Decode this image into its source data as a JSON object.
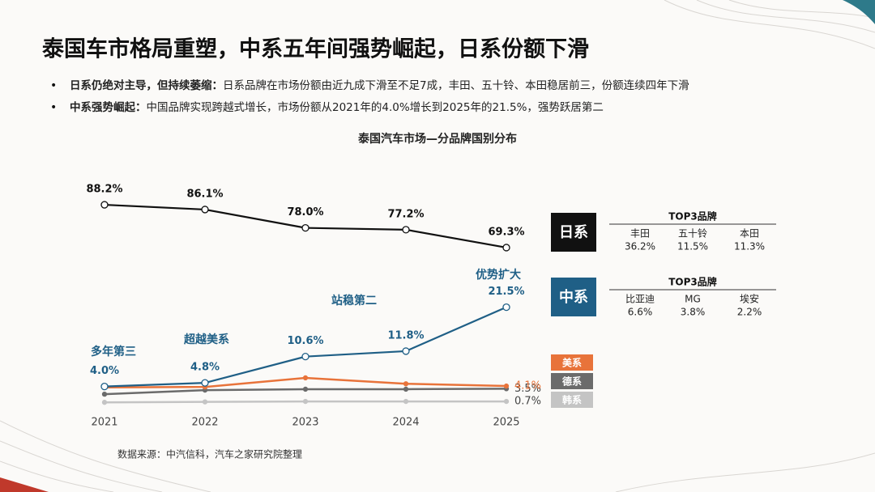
{
  "header": {
    "title": "泰国车市格局重塑，中系五年间强势崛起，日系份额下滑",
    "bullets": [
      {
        "bold": "日系仍绝对主导，但持续萎缩：",
        "text": "日系品牌在市场份额由近九成下滑至不足7成，丰田、五十铃、本田稳居前三，份额连续四年下滑"
      },
      {
        "bold": "中系强势崛起：",
        "text": "中国品牌实现跨越式增长，市场份额从2021年的4.0%增长到2025年的21.5%，强势跃居第二"
      }
    ]
  },
  "chart_data": {
    "type": "line",
    "title": "泰国汽车市场—分品牌国别分布",
    "categories": [
      "2021",
      "2022",
      "2023",
      "2024",
      "2025"
    ],
    "ylim": [
      0,
      50
    ],
    "y2lim": [
      0,
      100
    ],
    "series": [
      {
        "name": "日系",
        "color": "#111111",
        "axis": "y2",
        "values": [
          88.2,
          86.1,
          78.0,
          77.2,
          69.3
        ],
        "value_labels": [
          "88.2%",
          "86.1%",
          "78.0%",
          "77.2%",
          "69.3%"
        ]
      },
      {
        "name": "中系",
        "color": "#1f5f86",
        "values": [
          4.0,
          4.8,
          10.6,
          11.8,
          21.5
        ],
        "value_labels": [
          "4.0%",
          "4.8%",
          "10.6%",
          "11.8%",
          "21.5%"
        ]
      },
      {
        "name": "美系",
        "color": "#e8733a",
        "values": [
          3.8,
          3.9,
          5.9,
          4.6,
          4.1
        ],
        "value_labels": [
          null,
          null,
          null,
          null,
          "4.1%"
        ]
      },
      {
        "name": "德系",
        "color": "#6b6b6b",
        "values": [
          2.3,
          3.2,
          3.4,
          3.4,
          3.5
        ],
        "value_labels": [
          null,
          null,
          null,
          null,
          "3.5%"
        ]
      },
      {
        "name": "韩系",
        "color": "#c4c4c4",
        "values": [
          0.5,
          0.6,
          0.7,
          0.7,
          0.7
        ],
        "value_labels": [
          null,
          null,
          null,
          null,
          "0.7%"
        ]
      }
    ],
    "annotations": [
      "多年第三",
      "超越美系",
      "站稳第二",
      "优势扩大"
    ]
  },
  "top3_panels": [
    {
      "heading": "TOP3品牌",
      "brands": [
        "丰田",
        "五十铃",
        "本田"
      ],
      "shares": [
        "36.2%",
        "11.5%",
        "11.3%"
      ]
    },
    {
      "heading": "TOP3品牌",
      "brands": [
        "比亚迪",
        "MG",
        "埃安"
      ],
      "shares": [
        "6.6%",
        "3.8%",
        "2.2%"
      ]
    }
  ],
  "source": "数据来源：中汽信科，汽车之家研究院整理"
}
